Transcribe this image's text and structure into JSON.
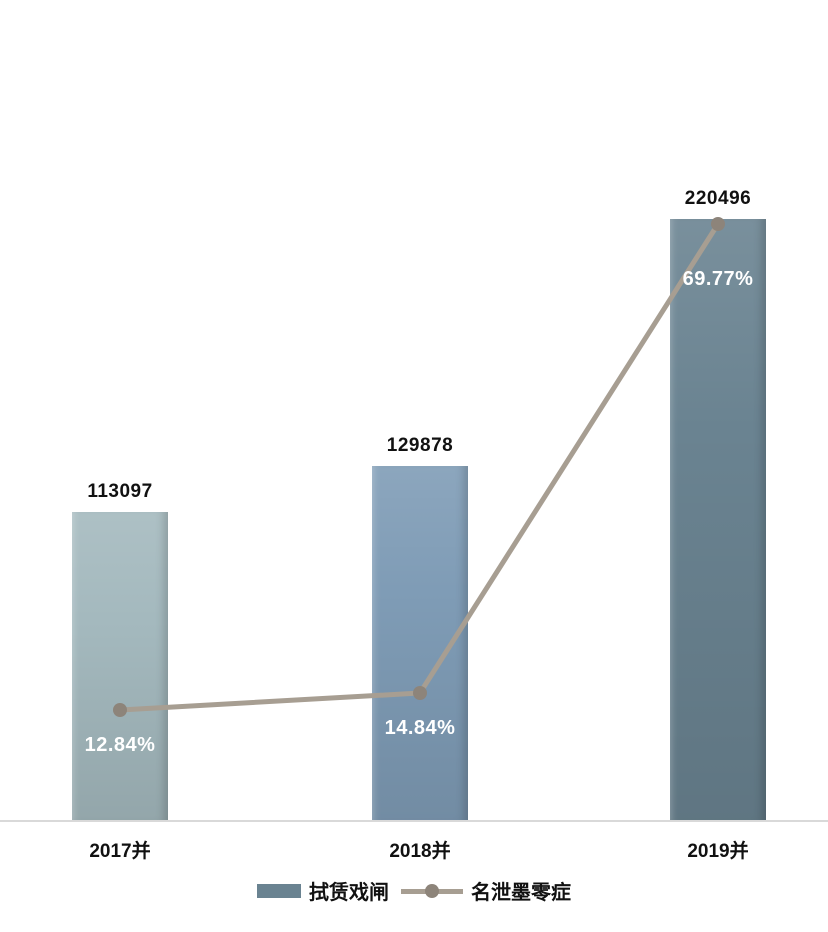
{
  "chart_data": {
    "type": "bar",
    "subtype": "bar-line-combo",
    "title": "",
    "xlabel": "",
    "ylabel": "",
    "categories": [
      "2017并",
      "2018并",
      "2019并"
    ],
    "series": [
      {
        "name": "拭赁戏闸",
        "type": "bar",
        "values": [
          113097,
          129878,
          220496
        ],
        "data_labels": [
          "113097",
          "129878",
          "220496"
        ],
        "bar_colors": [
          "#a4b9be",
          "#7f9cb6",
          "#6a8391"
        ]
      },
      {
        "name": "名泄墨零症",
        "type": "line",
        "values_percent": [
          12.84,
          14.84,
          69.77
        ],
        "data_labels": [
          "12.84%",
          "14.84%",
          "69.77%"
        ],
        "line_color": "#a79e92",
        "marker_color": "#8d847a"
      }
    ],
    "bar_axis_max": 225000,
    "line_axis_max_percent": 84,
    "grid": false,
    "legend_position": "bottom",
    "axis_line_color": "#d9d9d9",
    "value_label_color": "#111111",
    "percent_label_color": "#ffffff"
  }
}
